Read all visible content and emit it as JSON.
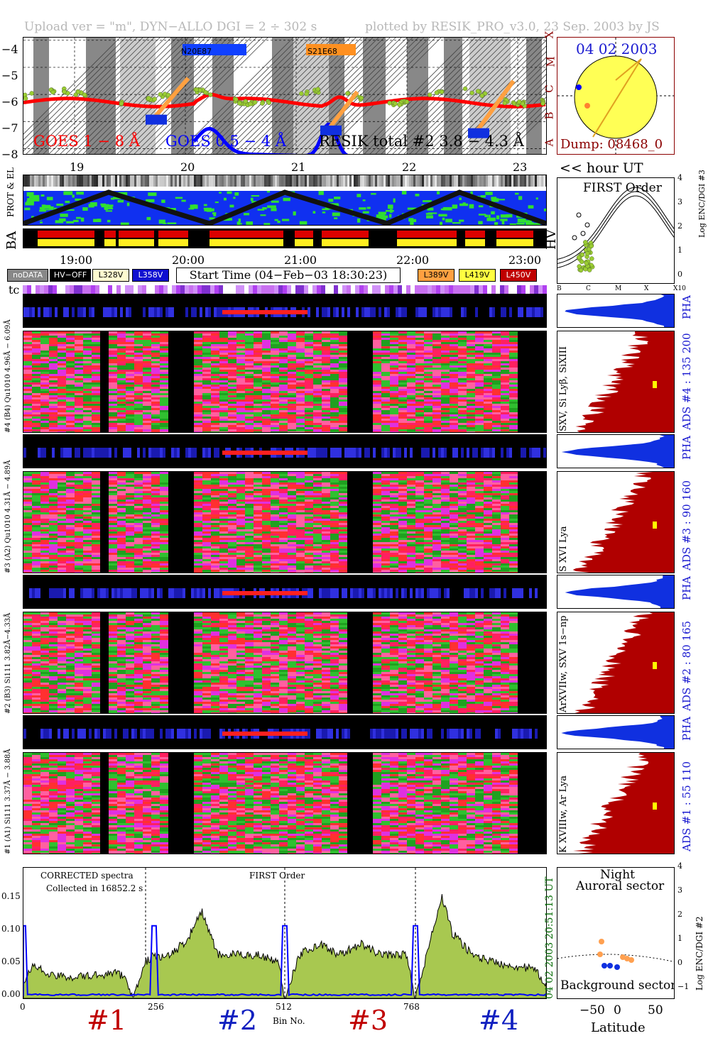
{
  "header": {
    "left": "Upload ver = \"m\", DYN−ALLO DGI =   2 ÷ 302 s",
    "right": "plotted by RESIK_PRO_v3.0, 23 Sep. 2003 by JS"
  },
  "goes_panel": {
    "ylim": [
      -8.2,
      -3.9
    ],
    "yticks": [
      "−4",
      "−5",
      "−6",
      "−7",
      "−8"
    ],
    "class_letters": [
      "X",
      "M",
      "C",
      "B",
      "A"
    ],
    "legend_goes_long": "GOES 1 − 8 Å",
    "legend_goes_short": "GOES 0.5 − 4 Å",
    "legend_resik": "RESIK total #2  3.8 − 4.3 Å",
    "region_1": "N20E87",
    "region_2": "S21E68",
    "day_labels": [
      "19",
      "20",
      "21",
      "22",
      "23"
    ],
    "colors": {
      "goes_long": "#ff0000",
      "goes_short": "#0000ff",
      "resik": "#000000",
      "points": "#9acd32",
      "orange": "#ffa040"
    }
  },
  "sun_panel": {
    "date": "04 02 2003",
    "dump": "Dump: 08468_0"
  },
  "hour_ut_label": "<< hour UT",
  "prot_el_label": "PROT & EL",
  "ba_label": "BA",
  "hv_label": "HV",
  "time_labels": [
    "19:00",
    "20:00",
    "21:00",
    "22:00",
    "23:00"
  ],
  "legend": {
    "nodata": "noDATA",
    "hvoff": "HV−OFF",
    "v1": "L328V",
    "v2": "L358V",
    "start_time": "Start Time (04−Feb−03 18:30:23)",
    "v3": "L389V",
    "v4": "L419V",
    "v5": "L450V"
  },
  "tc_label": "tc",
  "first_order": {
    "title": "FIRST Order",
    "ylabel": "Log ENC/DGI #3",
    "yticks": [
      "4",
      "3",
      "2",
      "1",
      "0"
    ],
    "xticks": [
      "B",
      "C",
      "M",
      "X",
      "X10"
    ]
  },
  "channels": [
    {
      "pha_label": "#4 (B4) Qu1010 4.96Å − 6.09Å",
      "spec_label": "SXV, Si Lyβ, SiXIII",
      "ads": "ADS #4 :   135 200",
      "pha": "PHA"
    },
    {
      "pha_label": "#3 (A2) Qu1010 4.31Å − 4.89Å",
      "spec_label": "S XVI Lya",
      "ads": "ADS #3 :   90 160",
      "pha": "PHA"
    },
    {
      "pha_label": "#2 (B3) Si111 3.82Å−4.33Å",
      "spec_label": "ArXVIIw, SXV 1s−np",
      "ads": "ADS #2 :   80 165",
      "pha": "PHA"
    },
    {
      "pha_label": "#1 (A1) Si111 3.37Å − 3.88Å",
      "spec_label": "K XVIIIw, Ar Lya",
      "ads": "ADS #1 :   55 110",
      "pha": "PHA"
    }
  ],
  "spectrum_panel": {
    "text1": "CORRECTED spectra",
    "text2": "Collected in 16852.2 s",
    "text3": "FIRST Order",
    "xlabel": "Bin No.",
    "xticks": [
      "0",
      "256",
      "512",
      "768"
    ],
    "yticks": [
      "0.15",
      "0.10",
      "0.05",
      "0.00"
    ],
    "ylim": [
      0,
      0.18
    ],
    "time_label": "20:51:13 UT",
    "date_label": "04 02 2003",
    "channel_labels": [
      "#1",
      "#2",
      "#3",
      "#4"
    ],
    "channel_label_colors": [
      "#c00000",
      "#1020c0",
      "#c00000",
      "#1020c0"
    ],
    "colors": {
      "fill": "#a8c850",
      "line": "#000000",
      "blue": "#0000ff"
    }
  },
  "orbit_panel": {
    "title1": "Night",
    "title2": "Auroral sector",
    "bottom": "Background sector",
    "xlabel": "Latitude",
    "xticks": [
      "−50",
      "0",
      "50"
    ],
    "ylabel": "Log ENC/DGI #2",
    "yticks": [
      "4",
      "3",
      "2",
      "1",
      "0",
      "−1"
    ]
  },
  "chart_data": {
    "type": "line",
    "title": "",
    "xlabel": "Bin No.",
    "ylabel": "",
    "xlim": [
      0,
      1024
    ],
    "ylim": [
      0,
      0.18
    ],
    "series": [
      {
        "name": "",
        "x": [
          0,
          20,
          60,
          120,
          180,
          200,
          215,
          240,
          256,
          280,
          320,
          350,
          380,
          420,
          460,
          500,
          512,
          540,
          580,
          620,
          660,
          700,
          750,
          768,
          790,
          820,
          840,
          880,
          920,
          960,
          1000,
          1024
        ],
        "values": [
          0.025,
          0.045,
          0.03,
          0.03,
          0.035,
          0.03,
          0.0,
          0.05,
          0.06,
          0.055,
          0.08,
          0.12,
          0.06,
          0.06,
          0.06,
          0.05,
          0.0,
          0.06,
          0.075,
          0.06,
          0.075,
          0.06,
          0.06,
          0.0,
          0.06,
          0.14,
          0.09,
          0.06,
          0.05,
          0.045,
          0.04,
          0.02
        ]
      }
    ]
  }
}
